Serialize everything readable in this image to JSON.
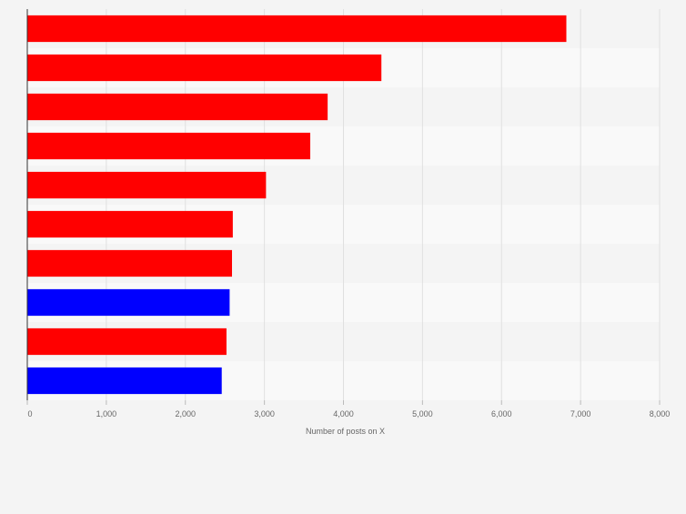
{
  "chart_data": {
    "type": "bar",
    "orientation": "horizontal",
    "title": "",
    "xlabel": "Number of posts on X",
    "ylabel": "",
    "xlim": [
      0,
      8000
    ],
    "x_ticks": [
      0,
      1000,
      2000,
      3000,
      4000,
      5000,
      6000,
      7000,
      8000
    ],
    "x_tick_labels": [
      "0",
      "1,000",
      "2,000",
      "3,000",
      "4,000",
      "5,000",
      "6,000",
      "7,000",
      "8,000"
    ],
    "grid": true,
    "legend": "none",
    "series": [
      {
        "values": [
          6820,
          4480,
          3800,
          3580,
          3020,
          2600,
          2590,
          2560,
          2520,
          2460
        ],
        "colors": [
          "#ff0000",
          "#ff0000",
          "#ff0000",
          "#ff0000",
          "#ff0000",
          "#ff0000",
          "#ff0000",
          "#0000ff",
          "#ff0000",
          "#0000ff"
        ]
      }
    ],
    "colors": {
      "primary": "#ff0000",
      "secondary": "#0000ff"
    }
  }
}
